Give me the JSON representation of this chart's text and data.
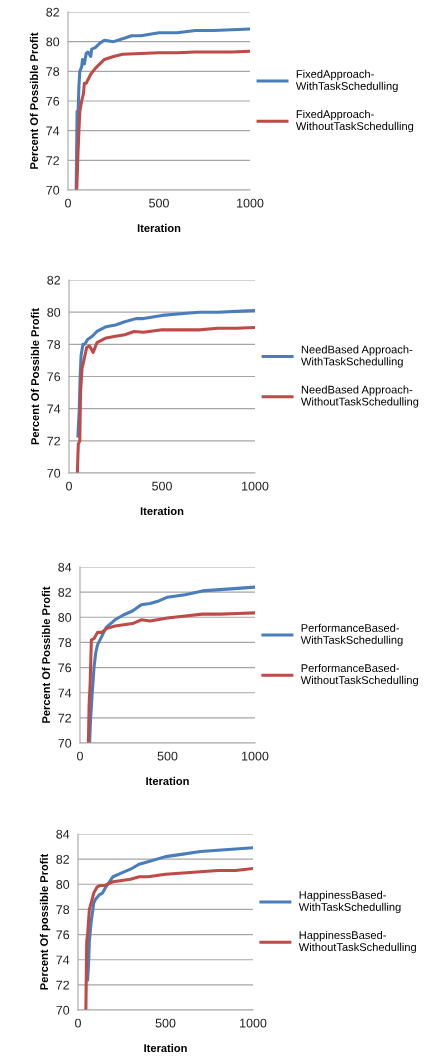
{
  "chart_data": [
    {
      "type": "line",
      "xlabel": "Iteration",
      "ylabel": "Percent Of Possible Profit",
      "xlim": [
        0,
        1000
      ],
      "xticks": [
        0,
        500,
        1000
      ],
      "ylim": [
        70,
        82
      ],
      "yticks": [
        70,
        72,
        74,
        76,
        78,
        80,
        82
      ],
      "grid": "y",
      "legend": "right",
      "marker": "none",
      "line_style": "solid",
      "series": [
        {
          "name": "FixedApproach-\nWithTaskSchedulling",
          "color": "#4a7ebb",
          "x": [
            45,
            50,
            55,
            60,
            65,
            75,
            80,
            90,
            100,
            110,
            125,
            130,
            150,
            175,
            200,
            250,
            300,
            350,
            400,
            500,
            600,
            700,
            800,
            900,
            1000
          ],
          "values": [
            70,
            75.3,
            75,
            77,
            78,
            78.3,
            78.8,
            78.5,
            79.2,
            79.3,
            79.0,
            79.5,
            79.6,
            79.9,
            80.1,
            80.0,
            80.2,
            80.4,
            80.4,
            80.6,
            80.6,
            80.75,
            80.75,
            80.8,
            80.85
          ]
        },
        {
          "name": "FixedApproach-\nWithoutTaskSchedulling",
          "color": "#be4b48",
          "x": [
            48,
            55,
            60,
            65,
            75,
            85,
            90,
            100,
            125,
            150,
            175,
            200,
            250,
            300,
            400,
            500,
            600,
            700,
            800,
            900,
            1000
          ],
          "values": [
            70,
            72.5,
            74,
            75.3,
            76,
            76.5,
            77.2,
            77.2,
            77.8,
            78.2,
            78.5,
            78.8,
            79.0,
            79.15,
            79.2,
            79.25,
            79.25,
            79.3,
            79.3,
            79.3,
            79.35
          ]
        }
      ]
    },
    {
      "type": "line",
      "xlabel": "Iteration",
      "ylabel": "Percent Of Possible Profit",
      "xlim": [
        0,
        1000
      ],
      "xticks": [
        0,
        500,
        1000
      ],
      "ylim": [
        70,
        82
      ],
      "yticks": [
        70,
        72,
        74,
        76,
        78,
        80,
        82
      ],
      "grid": "y",
      "legend": "right",
      "marker": "none",
      "line_style": "solid",
      "series": [
        {
          "name": "NeedBased Approach-\nWithTaskSchedulling",
          "color": "#4a7ebb",
          "x": [
            48,
            55,
            60,
            65,
            75,
            85,
            100,
            125,
            150,
            200,
            250,
            300,
            360,
            400,
            500,
            600,
            700,
            800,
            900,
            1000
          ],
          "values": [
            72.3,
            73.9,
            76,
            77.3,
            78,
            78,
            78.3,
            78.5,
            78.8,
            79.1,
            79.2,
            79.4,
            79.6,
            79.6,
            79.8,
            79.9,
            80.0,
            80.0,
            80.05,
            80.1
          ]
        },
        {
          "name": "NeedBased Approach-\nWithoutTaskSchedulling",
          "color": "#be4b48",
          "x": [
            45,
            50,
            58,
            62,
            70,
            80,
            95,
            110,
            130,
            150,
            200,
            250,
            300,
            350,
            400,
            500,
            600,
            700,
            800,
            900,
            1000
          ],
          "values": [
            70,
            71.8,
            72,
            75,
            76.5,
            77.0,
            77.8,
            77.9,
            77.5,
            78.1,
            78.4,
            78.5,
            78.6,
            78.8,
            78.75,
            78.9,
            78.9,
            78.9,
            79.0,
            79.0,
            79.05
          ]
        }
      ]
    },
    {
      "type": "line",
      "xlabel": "Iteration",
      "ylabel": "Percent Of Possible Profit",
      "xlim": [
        0,
        1000
      ],
      "xticks": [
        0,
        500,
        1000
      ],
      "ylim": [
        70,
        84
      ],
      "yticks": [
        70,
        72,
        74,
        76,
        78,
        80,
        82,
        84
      ],
      "grid": "y",
      "legend": "right",
      "marker": "none",
      "line_style": "solid",
      "series": [
        {
          "name": "PerformanceBased-\nWithTaskSchedulling",
          "color": "#4a7ebb",
          "x": [
            55,
            60,
            70,
            80,
            90,
            100,
            125,
            150,
            200,
            250,
            300,
            350,
            400,
            450,
            500,
            600,
            700,
            800,
            900,
            1000
          ],
          "values": [
            70,
            71.8,
            74,
            76,
            77.2,
            77.8,
            78.5,
            79.2,
            79.8,
            80.2,
            80.5,
            81.0,
            81.1,
            81.3,
            81.6,
            81.8,
            82.1,
            82.2,
            82.3,
            82.4
          ]
        },
        {
          "name": "PerformanceBased-\nWithoutTaskSchedulling",
          "color": "#be4b48",
          "x": [
            48,
            52,
            58,
            65,
            80,
            100,
            125,
            150,
            200,
            250,
            300,
            350,
            400,
            500,
            600,
            700,
            800,
            900,
            1000
          ],
          "values": [
            70,
            73,
            74.7,
            78.2,
            78.3,
            78.8,
            78.8,
            79.1,
            79.3,
            79.4,
            79.5,
            79.8,
            79.7,
            79.95,
            80.1,
            80.25,
            80.25,
            80.3,
            80.35
          ]
        }
      ]
    },
    {
      "type": "line",
      "xlabel": "Iteration",
      "ylabel": "Percent Of possible Profit",
      "xlim": [
        0,
        1000
      ],
      "xticks": [
        0,
        500,
        1000
      ],
      "ylim": [
        70,
        84
      ],
      "yticks": [
        70,
        72,
        74,
        76,
        78,
        80,
        82,
        84
      ],
      "grid": "y",
      "legend": "right",
      "marker": "none",
      "line_style": "solid",
      "series": [
        {
          "name": "HappinessBased-\nWithTaskSchedulling",
          "color": "#4a7ebb",
          "x": [
            55,
            60,
            65,
            75,
            90,
            100,
            125,
            140,
            160,
            200,
            250,
            300,
            350,
            400,
            500,
            600,
            700,
            800,
            900,
            1000
          ],
          "values": [
            72.4,
            73.5,
            75.5,
            77,
            78.5,
            78.8,
            79.2,
            79.3,
            79.8,
            80.6,
            80.9,
            81.2,
            81.6,
            81.8,
            82.2,
            82.4,
            82.6,
            82.7,
            82.8,
            82.9
          ]
        },
        {
          "name": "HappinessBased-\nWithoutTaskSchedulling",
          "color": "#be4b48",
          "x": [
            45,
            50,
            55,
            65,
            75,
            90,
            110,
            125,
            150,
            200,
            250,
            300,
            350,
            400,
            500,
            600,
            700,
            800,
            900,
            1000
          ],
          "values": [
            70,
            75.5,
            76,
            78,
            78.5,
            79.3,
            79.8,
            79.9,
            79.9,
            80.2,
            80.3,
            80.4,
            80.6,
            80.6,
            80.8,
            80.9,
            81.0,
            81.1,
            81.1,
            81.25
          ]
        }
      ]
    }
  ]
}
